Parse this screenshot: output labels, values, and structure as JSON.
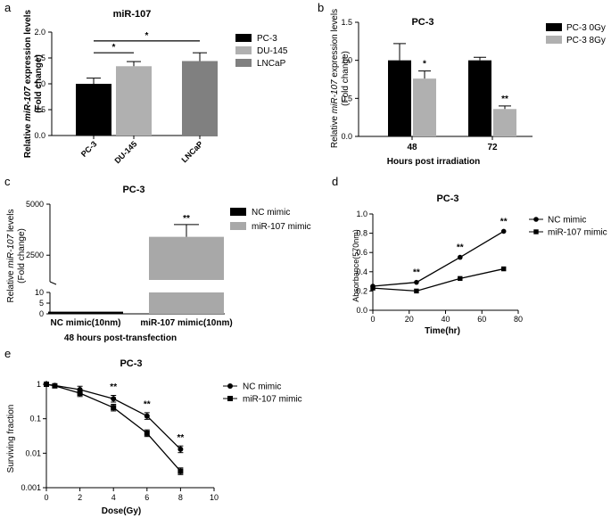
{
  "chart_data": [
    {
      "panel": "a",
      "type": "bar",
      "title": "miR-107",
      "ylabel_line1": "Relative miR-107 expression levels",
      "ylabel_line2": "(Fold change)",
      "categories": [
        "PC-3",
        "DU-145",
        "LNCaP"
      ],
      "values": [
        1.0,
        1.34,
        1.44
      ],
      "errors": [
        0.11,
        0.09,
        0.16
      ],
      "colors": [
        "#000000",
        "#b0b0b0",
        "#808080"
      ],
      "ylim": [
        0,
        2.0
      ],
      "yticks": [
        "0.0",
        "0.5",
        "1.0",
        "1.5",
        "2.0"
      ],
      "legend": [
        "PC-3",
        "DU-145",
        "LNCaP"
      ],
      "significance": [
        {
          "from": "PC-3",
          "to": "DU-145",
          "level": 1.6,
          "label": "*"
        },
        {
          "from": "PC-3",
          "to": "LNCaP",
          "level": 1.83,
          "label": "*"
        }
      ]
    },
    {
      "panel": "b",
      "type": "bar",
      "title": "PC-3",
      "ylabel_line1": "Relative miR-107 expression levels",
      "ylabel_line2": "(Fold change)",
      "xlabel": "Hours post irradiation",
      "categories": [
        "48",
        "72"
      ],
      "series": [
        {
          "name": "PC-3 0Gy",
          "values": [
            1.0,
            1.0
          ],
          "errors": [
            0.22,
            0.04
          ],
          "color": "#000000"
        },
        {
          "name": "PC-3 8Gy",
          "values": [
            0.76,
            0.36
          ],
          "errors": [
            0.1,
            0.04
          ],
          "color": "#b0b0b0"
        }
      ],
      "ylim": [
        0,
        1.5
      ],
      "yticks": [
        "0.0",
        "0.5",
        "1.0",
        "1.5"
      ],
      "annotations": [
        "*",
        "**"
      ]
    },
    {
      "panel": "c",
      "type": "bar",
      "title": "PC-3",
      "ylabel_line1": "Relative miR-107 levels",
      "ylabel_line2": "(Fold change)",
      "xlabel": "48 hours post-transfection",
      "categories": [
        "NC mimic(10nm)",
        "miR-107 mimic(10nm)"
      ],
      "values": [
        1.0,
        3400
      ],
      "errors": [
        0.2,
        600
      ],
      "colors": [
        "#000000",
        "#a8a8a8"
      ],
      "yticks": [
        "0",
        "5",
        "10",
        "2500",
        "5000"
      ],
      "legend": [
        "NC mimic",
        "miR-107 mimic"
      ],
      "annotations": [
        "**"
      ]
    },
    {
      "panel": "d",
      "type": "line",
      "title": "PC-3",
      "xlabel": "Time(hr)",
      "ylabel": "Absorbance(570nm)",
      "xlim": [
        0,
        80
      ],
      "ylim": [
        0,
        1.0
      ],
      "xticks": [
        "0",
        "20",
        "40",
        "60",
        "80"
      ],
      "yticks": [
        "0.0",
        "0.2",
        "0.4",
        "0.6",
        "0.8",
        "1.0"
      ],
      "series": [
        {
          "name": "NC mimic",
          "marker": "circle",
          "x": [
            0,
            24,
            48,
            72
          ],
          "y": [
            0.25,
            0.29,
            0.55,
            0.82
          ]
        },
        {
          "name": "miR-107 mimic",
          "marker": "square",
          "x": [
            0,
            24,
            48,
            72
          ],
          "y": [
            0.23,
            0.2,
            0.33,
            0.43
          ]
        }
      ],
      "annotations": [
        "**",
        "**",
        "**"
      ]
    },
    {
      "panel": "e",
      "type": "scatter",
      "title": "PC-3",
      "xlabel": "Dose(Gy)",
      "ylabel": "Surviving fraction",
      "xlim": [
        0,
        10
      ],
      "yscale": "log",
      "ylim": [
        0.001,
        1
      ],
      "xticks": [
        "0",
        "2",
        "4",
        "6",
        "8",
        "10"
      ],
      "yticks": [
        "0.001",
        "0.01",
        "0.1",
        "1"
      ],
      "series": [
        {
          "name": "NC mimic",
          "marker": "circle",
          "x": [
            0,
            0.5,
            2,
            4,
            6,
            8
          ],
          "y": [
            1.0,
            0.92,
            0.7,
            0.38,
            0.12,
            0.013
          ]
        },
        {
          "name": "miR-107 mimic",
          "marker": "square",
          "x": [
            0,
            0.5,
            2,
            4,
            6,
            8
          ],
          "y": [
            1.0,
            0.9,
            0.55,
            0.21,
            0.038,
            0.003
          ]
        }
      ],
      "annotations": [
        "**",
        "**",
        "**"
      ]
    }
  ]
}
